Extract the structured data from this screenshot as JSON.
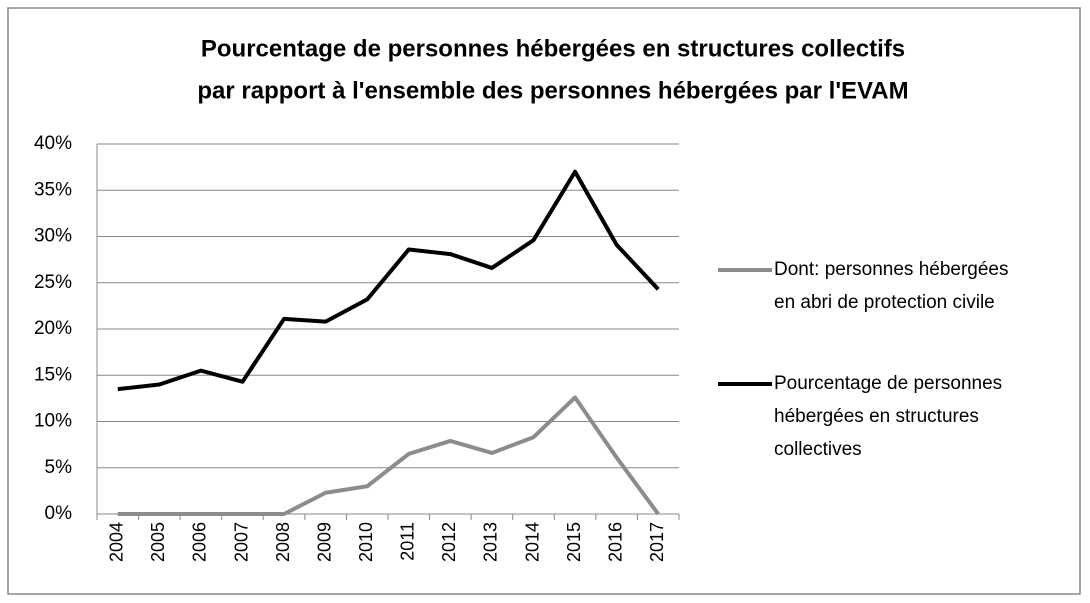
{
  "chart_data": {
    "type": "line",
    "title": [
      "Pourcentage de personnes hébergées en structures collectifs",
      "par rapport à l'ensemble des personnes hébergées par l'EVAM"
    ],
    "categories": [
      "2004",
      "2005",
      "2006",
      "2007",
      "2008",
      "2009",
      "2010",
      "2011",
      "2012",
      "2013",
      "2014",
      "2015",
      "2016",
      "2017"
    ],
    "series": [
      {
        "name": "Dont: personnes hébergées en abri de protection civile",
        "color": "#8c8c8c",
        "values": [
          0,
          0,
          0,
          0,
          0,
          2.3,
          3.0,
          6.5,
          7.9,
          6.6,
          8.3,
          12.6,
          6.1,
          0
        ]
      },
      {
        "name": "Pourcentage de personnes hébergées en structures collectives",
        "color": "#000000",
        "values": [
          13.5,
          14.0,
          15.5,
          14.3,
          21.1,
          20.8,
          23.2,
          28.6,
          28.1,
          26.6,
          29.6,
          37.0,
          29.1,
          24.3
        ]
      }
    ],
    "ylim": [
      0,
      40
    ],
    "yticks": [
      {
        "value": 0,
        "label": "0%"
      },
      {
        "value": 5,
        "label": "5%"
      },
      {
        "value": 10,
        "label": "10%"
      },
      {
        "value": 15,
        "label": "15%"
      },
      {
        "value": 20,
        "label": "20%"
      },
      {
        "value": 25,
        "label": "25%"
      },
      {
        "value": 30,
        "label": "30%"
      },
      {
        "value": 35,
        "label": "35%"
      },
      {
        "value": 40,
        "label": "40%"
      }
    ],
    "grid": true,
    "legend": "right"
  }
}
